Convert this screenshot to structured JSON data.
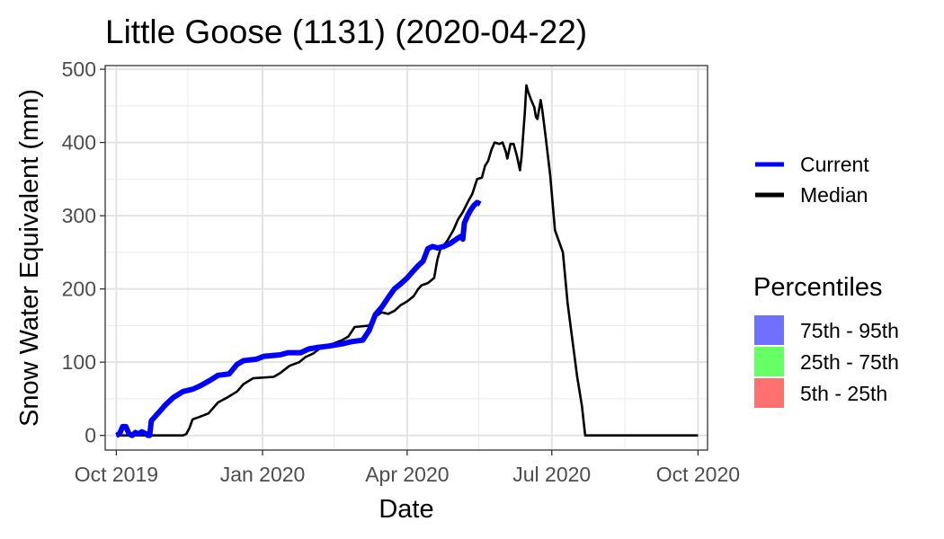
{
  "chart_data": {
    "type": "line",
    "title": "Little Goose (1131) (2020-04-22)",
    "xlabel": "Date",
    "ylabel": "Snow Water Equivalent (mm)",
    "xlim": [
      "2019-09-24",
      "2020-10-07"
    ],
    "ylim": [
      -20,
      505
    ],
    "x_ticks": [
      {
        "date": "2019-10-01",
        "label": "Oct 2019"
      },
      {
        "date": "2020-01-01",
        "label": "Jan 2020"
      },
      {
        "date": "2020-04-01",
        "label": "Apr 2020"
      },
      {
        "date": "2020-07-01",
        "label": "Jul 2020"
      },
      {
        "date": "2020-10-01",
        "label": "Oct 2020"
      }
    ],
    "x_minor_ticks": [
      "2019-11-15",
      "2020-02-15",
      "2020-05-16",
      "2020-08-16"
    ],
    "y_ticks": [
      0,
      100,
      200,
      300,
      400,
      500
    ],
    "y_minor_ticks": [
      50,
      150,
      250,
      350,
      450
    ],
    "grid": true,
    "legend_placement": "right",
    "series": [
      {
        "name": "Current",
        "color": "#0000ff",
        "points": [
          {
            "x": "2019-10-01",
            "y": 0
          },
          {
            "x": "2019-10-03",
            "y": 2
          },
          {
            "x": "2019-10-05",
            "y": 12
          },
          {
            "x": "2019-10-07",
            "y": 12
          },
          {
            "x": "2019-10-09",
            "y": 2
          },
          {
            "x": "2019-10-11",
            "y": 0
          },
          {
            "x": "2019-10-13",
            "y": 4
          },
          {
            "x": "2019-10-15",
            "y": 2
          },
          {
            "x": "2019-10-17",
            "y": 5
          },
          {
            "x": "2019-10-19",
            "y": 3
          },
          {
            "x": "2019-10-21",
            "y": 0
          },
          {
            "x": "2019-10-22",
            "y": 0
          },
          {
            "x": "2019-10-23",
            "y": 20
          },
          {
            "x": "2019-10-28",
            "y": 32
          },
          {
            "x": "2019-11-01",
            "y": 42
          },
          {
            "x": "2019-11-06",
            "y": 52
          },
          {
            "x": "2019-11-12",
            "y": 60
          },
          {
            "x": "2019-11-18",
            "y": 63
          },
          {
            "x": "2019-11-23",
            "y": 68
          },
          {
            "x": "2019-11-28",
            "y": 74
          },
          {
            "x": "2019-12-04",
            "y": 82
          },
          {
            "x": "2019-12-11",
            "y": 84
          },
          {
            "x": "2019-12-16",
            "y": 97
          },
          {
            "x": "2019-12-20",
            "y": 102
          },
          {
            "x": "2019-12-28",
            "y": 104
          },
          {
            "x": "2020-01-02",
            "y": 108
          },
          {
            "x": "2020-01-12",
            "y": 110
          },
          {
            "x": "2020-01-17",
            "y": 113
          },
          {
            "x": "2020-01-25",
            "y": 113
          },
          {
            "x": "2020-01-30",
            "y": 118
          },
          {
            "x": "2020-02-04",
            "y": 120
          },
          {
            "x": "2020-02-12",
            "y": 122
          },
          {
            "x": "2020-02-20",
            "y": 125
          },
          {
            "x": "2020-02-26",
            "y": 128
          },
          {
            "x": "2020-03-04",
            "y": 130
          },
          {
            "x": "2020-03-08",
            "y": 143
          },
          {
            "x": "2020-03-12",
            "y": 165
          },
          {
            "x": "2020-03-16",
            "y": 175
          },
          {
            "x": "2020-03-20",
            "y": 188
          },
          {
            "x": "2020-03-24",
            "y": 200
          },
          {
            "x": "2020-03-28",
            "y": 207
          },
          {
            "x": "2020-04-01",
            "y": 215
          },
          {
            "x": "2020-04-05",
            "y": 225
          },
          {
            "x": "2020-04-08",
            "y": 232
          },
          {
            "x": "2020-04-11",
            "y": 238
          },
          {
            "x": "2020-04-14",
            "y": 255
          },
          {
            "x": "2020-04-17",
            "y": 258
          },
          {
            "x": "2020-04-20",
            "y": 256
          },
          {
            "x": "2020-04-24",
            "y": 258
          },
          {
            "x": "2020-04-28",
            "y": 262
          },
          {
            "x": "2020-05-02",
            "y": 268
          },
          {
            "x": "2020-05-05",
            "y": 272
          },
          {
            "x": "2020-05-06",
            "y": 268
          },
          {
            "x": "2020-05-07",
            "y": 290
          },
          {
            "x": "2020-05-09",
            "y": 300
          },
          {
            "x": "2020-05-11",
            "y": 308
          },
          {
            "x": "2020-05-13",
            "y": 314
          },
          {
            "x": "2020-05-15",
            "y": 318
          },
          {
            "x": "2020-05-17",
            "y": 316
          }
        ]
      },
      {
        "name": "Median",
        "color": "#000000",
        "points": [
          {
            "x": "2019-10-01",
            "y": 0
          },
          {
            "x": "2019-11-12",
            "y": 0
          },
          {
            "x": "2019-11-14",
            "y": 2
          },
          {
            "x": "2019-11-16",
            "y": 10
          },
          {
            "x": "2019-11-18",
            "y": 22
          },
          {
            "x": "2019-11-22",
            "y": 25
          },
          {
            "x": "2019-11-28",
            "y": 30
          },
          {
            "x": "2019-12-04",
            "y": 45
          },
          {
            "x": "2019-12-10",
            "y": 52
          },
          {
            "x": "2019-12-16",
            "y": 60
          },
          {
            "x": "2019-12-20",
            "y": 70
          },
          {
            "x": "2019-12-26",
            "y": 78
          },
          {
            "x": "2020-01-08",
            "y": 80
          },
          {
            "x": "2020-01-12",
            "y": 85
          },
          {
            "x": "2020-01-18",
            "y": 95
          },
          {
            "x": "2020-01-24",
            "y": 100
          },
          {
            "x": "2020-01-28",
            "y": 107
          },
          {
            "x": "2020-02-02",
            "y": 112
          },
          {
            "x": "2020-02-08",
            "y": 122
          },
          {
            "x": "2020-02-14",
            "y": 125
          },
          {
            "x": "2020-02-20",
            "y": 130
          },
          {
            "x": "2020-02-24",
            "y": 135
          },
          {
            "x": "2020-02-28",
            "y": 148
          },
          {
            "x": "2020-03-08",
            "y": 150
          },
          {
            "x": "2020-03-12",
            "y": 162
          },
          {
            "x": "2020-03-16",
            "y": 168
          },
          {
            "x": "2020-03-20",
            "y": 166
          },
          {
            "x": "2020-03-24",
            "y": 170
          },
          {
            "x": "2020-03-28",
            "y": 178
          },
          {
            "x": "2020-04-01",
            "y": 183
          },
          {
            "x": "2020-04-05",
            "y": 190
          },
          {
            "x": "2020-04-08",
            "y": 200
          },
          {
            "x": "2020-04-10",
            "y": 205
          },
          {
            "x": "2020-04-14",
            "y": 208
          },
          {
            "x": "2020-04-18",
            "y": 215
          },
          {
            "x": "2020-04-20",
            "y": 240
          },
          {
            "x": "2020-04-22",
            "y": 255
          },
          {
            "x": "2020-04-26",
            "y": 265
          },
          {
            "x": "2020-04-30",
            "y": 280
          },
          {
            "x": "2020-05-03",
            "y": 295
          },
          {
            "x": "2020-05-06",
            "y": 305
          },
          {
            "x": "2020-05-09",
            "y": 318
          },
          {
            "x": "2020-05-12",
            "y": 330
          },
          {
            "x": "2020-05-15",
            "y": 350
          },
          {
            "x": "2020-05-18",
            "y": 352
          },
          {
            "x": "2020-05-20",
            "y": 368
          },
          {
            "x": "2020-05-22",
            "y": 375
          },
          {
            "x": "2020-05-24",
            "y": 390
          },
          {
            "x": "2020-05-26",
            "y": 400
          },
          {
            "x": "2020-05-29",
            "y": 398
          },
          {
            "x": "2020-05-31",
            "y": 400
          },
          {
            "x": "2020-06-02",
            "y": 388
          },
          {
            "x": "2020-06-03",
            "y": 378
          },
          {
            "x": "2020-06-05",
            "y": 398
          },
          {
            "x": "2020-06-07",
            "y": 398
          },
          {
            "x": "2020-06-09",
            "y": 382
          },
          {
            "x": "2020-06-10",
            "y": 372
          },
          {
            "x": "2020-06-11",
            "y": 362
          },
          {
            "x": "2020-06-12",
            "y": 382
          },
          {
            "x": "2020-06-14",
            "y": 440
          },
          {
            "x": "2020-06-15",
            "y": 478
          },
          {
            "x": "2020-06-16",
            "y": 470
          },
          {
            "x": "2020-06-18",
            "y": 458
          },
          {
            "x": "2020-06-20",
            "y": 448
          },
          {
            "x": "2020-06-21",
            "y": 435
          },
          {
            "x": "2020-06-22",
            "y": 432
          },
          {
            "x": "2020-06-24",
            "y": 458
          },
          {
            "x": "2020-06-25",
            "y": 445
          },
          {
            "x": "2020-06-27",
            "y": 410
          },
          {
            "x": "2020-06-30",
            "y": 355
          },
          {
            "x": "2020-07-03",
            "y": 280
          },
          {
            "x": "2020-07-06",
            "y": 262
          },
          {
            "x": "2020-07-08",
            "y": 250
          },
          {
            "x": "2020-07-11",
            "y": 180
          },
          {
            "x": "2020-07-14",
            "y": 130
          },
          {
            "x": "2020-07-17",
            "y": 80
          },
          {
            "x": "2020-07-20",
            "y": 40
          },
          {
            "x": "2020-07-22",
            "y": 0
          },
          {
            "x": "2020-10-01",
            "y": 0
          }
        ]
      }
    ],
    "legend": {
      "lines": [
        {
          "label": "Current",
          "color": "#0000ff"
        },
        {
          "label": "Median",
          "color": "#000000"
        }
      ],
      "percentiles_title": "Percentiles",
      "percentiles": [
        {
          "label": "75th - 95th",
          "color": "#7070ff"
        },
        {
          "label": "25th - 75th",
          "color": "#66ff66"
        },
        {
          "label": "5th - 25th",
          "color": "#ff7070"
        }
      ]
    }
  }
}
